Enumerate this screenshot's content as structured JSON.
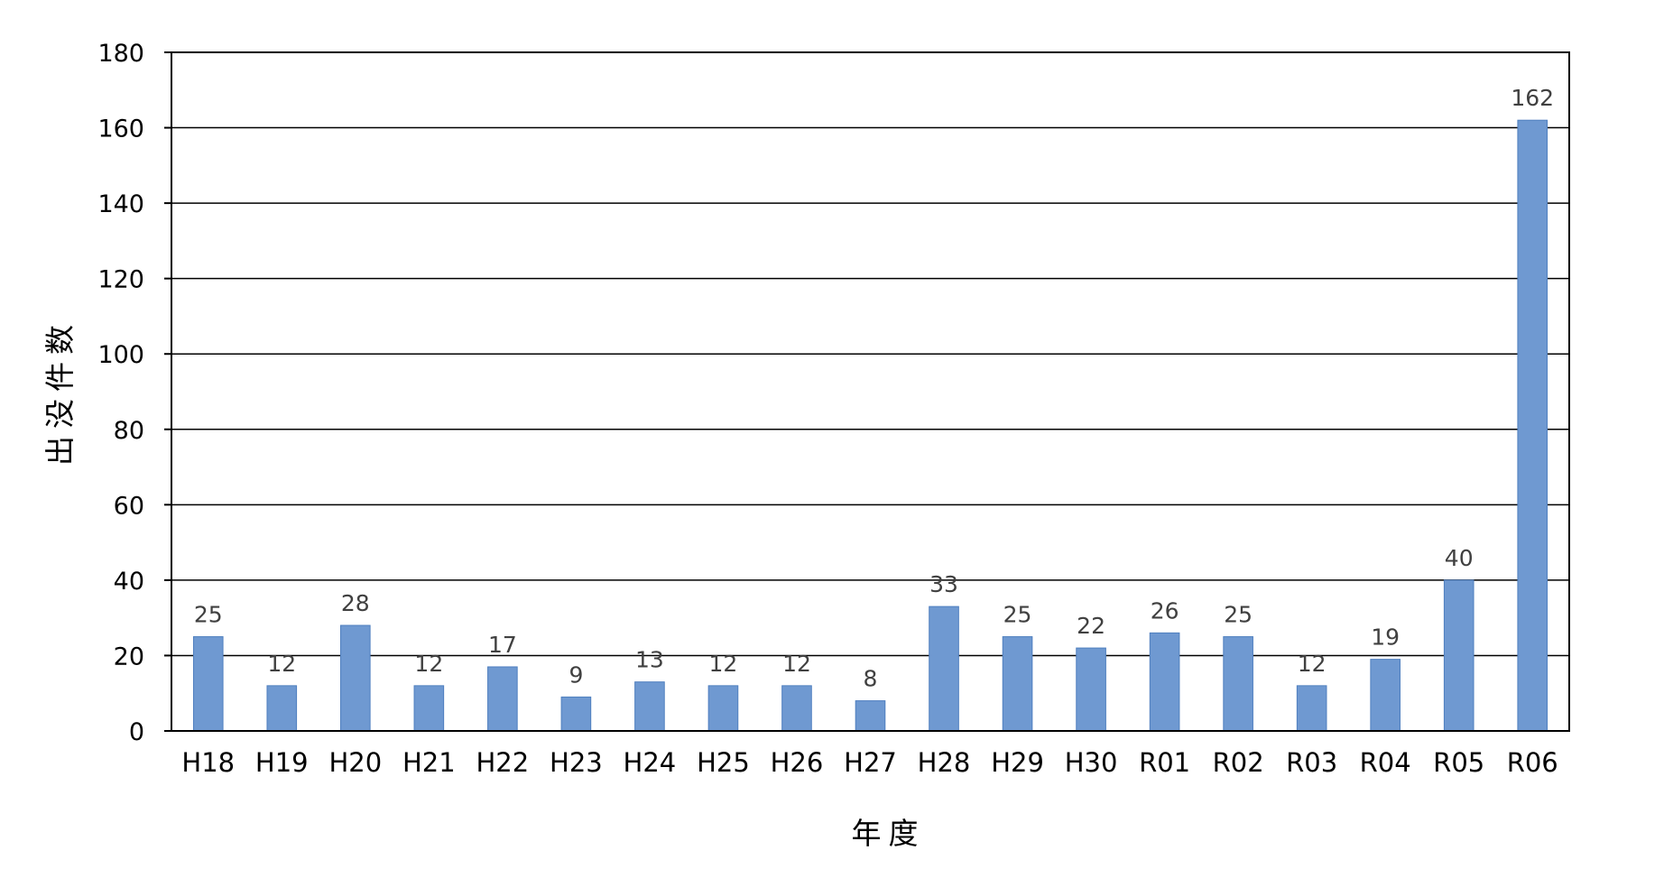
{
  "chart_data": {
    "type": "bar",
    "title": "",
    "xlabel": "年度",
    "ylabel": "出没件数",
    "categories": [
      "H18",
      "H19",
      "H20",
      "H21",
      "H22",
      "H23",
      "H24",
      "H25",
      "H26",
      "H27",
      "H28",
      "H29",
      "H30",
      "R01",
      "R02",
      "R03",
      "R04",
      "R05",
      "R06"
    ],
    "values": [
      25,
      12,
      28,
      12,
      17,
      9,
      13,
      12,
      12,
      8,
      33,
      25,
      22,
      26,
      25,
      12,
      19,
      40,
      162
    ],
    "ylim": [
      0,
      180
    ],
    "yticks": [
      0,
      20,
      40,
      60,
      80,
      100,
      120,
      140,
      160,
      180
    ],
    "grid": true,
    "legend": "none",
    "bar_color": "#6f99d1",
    "bar_edge_color": "#4f7fbf"
  }
}
